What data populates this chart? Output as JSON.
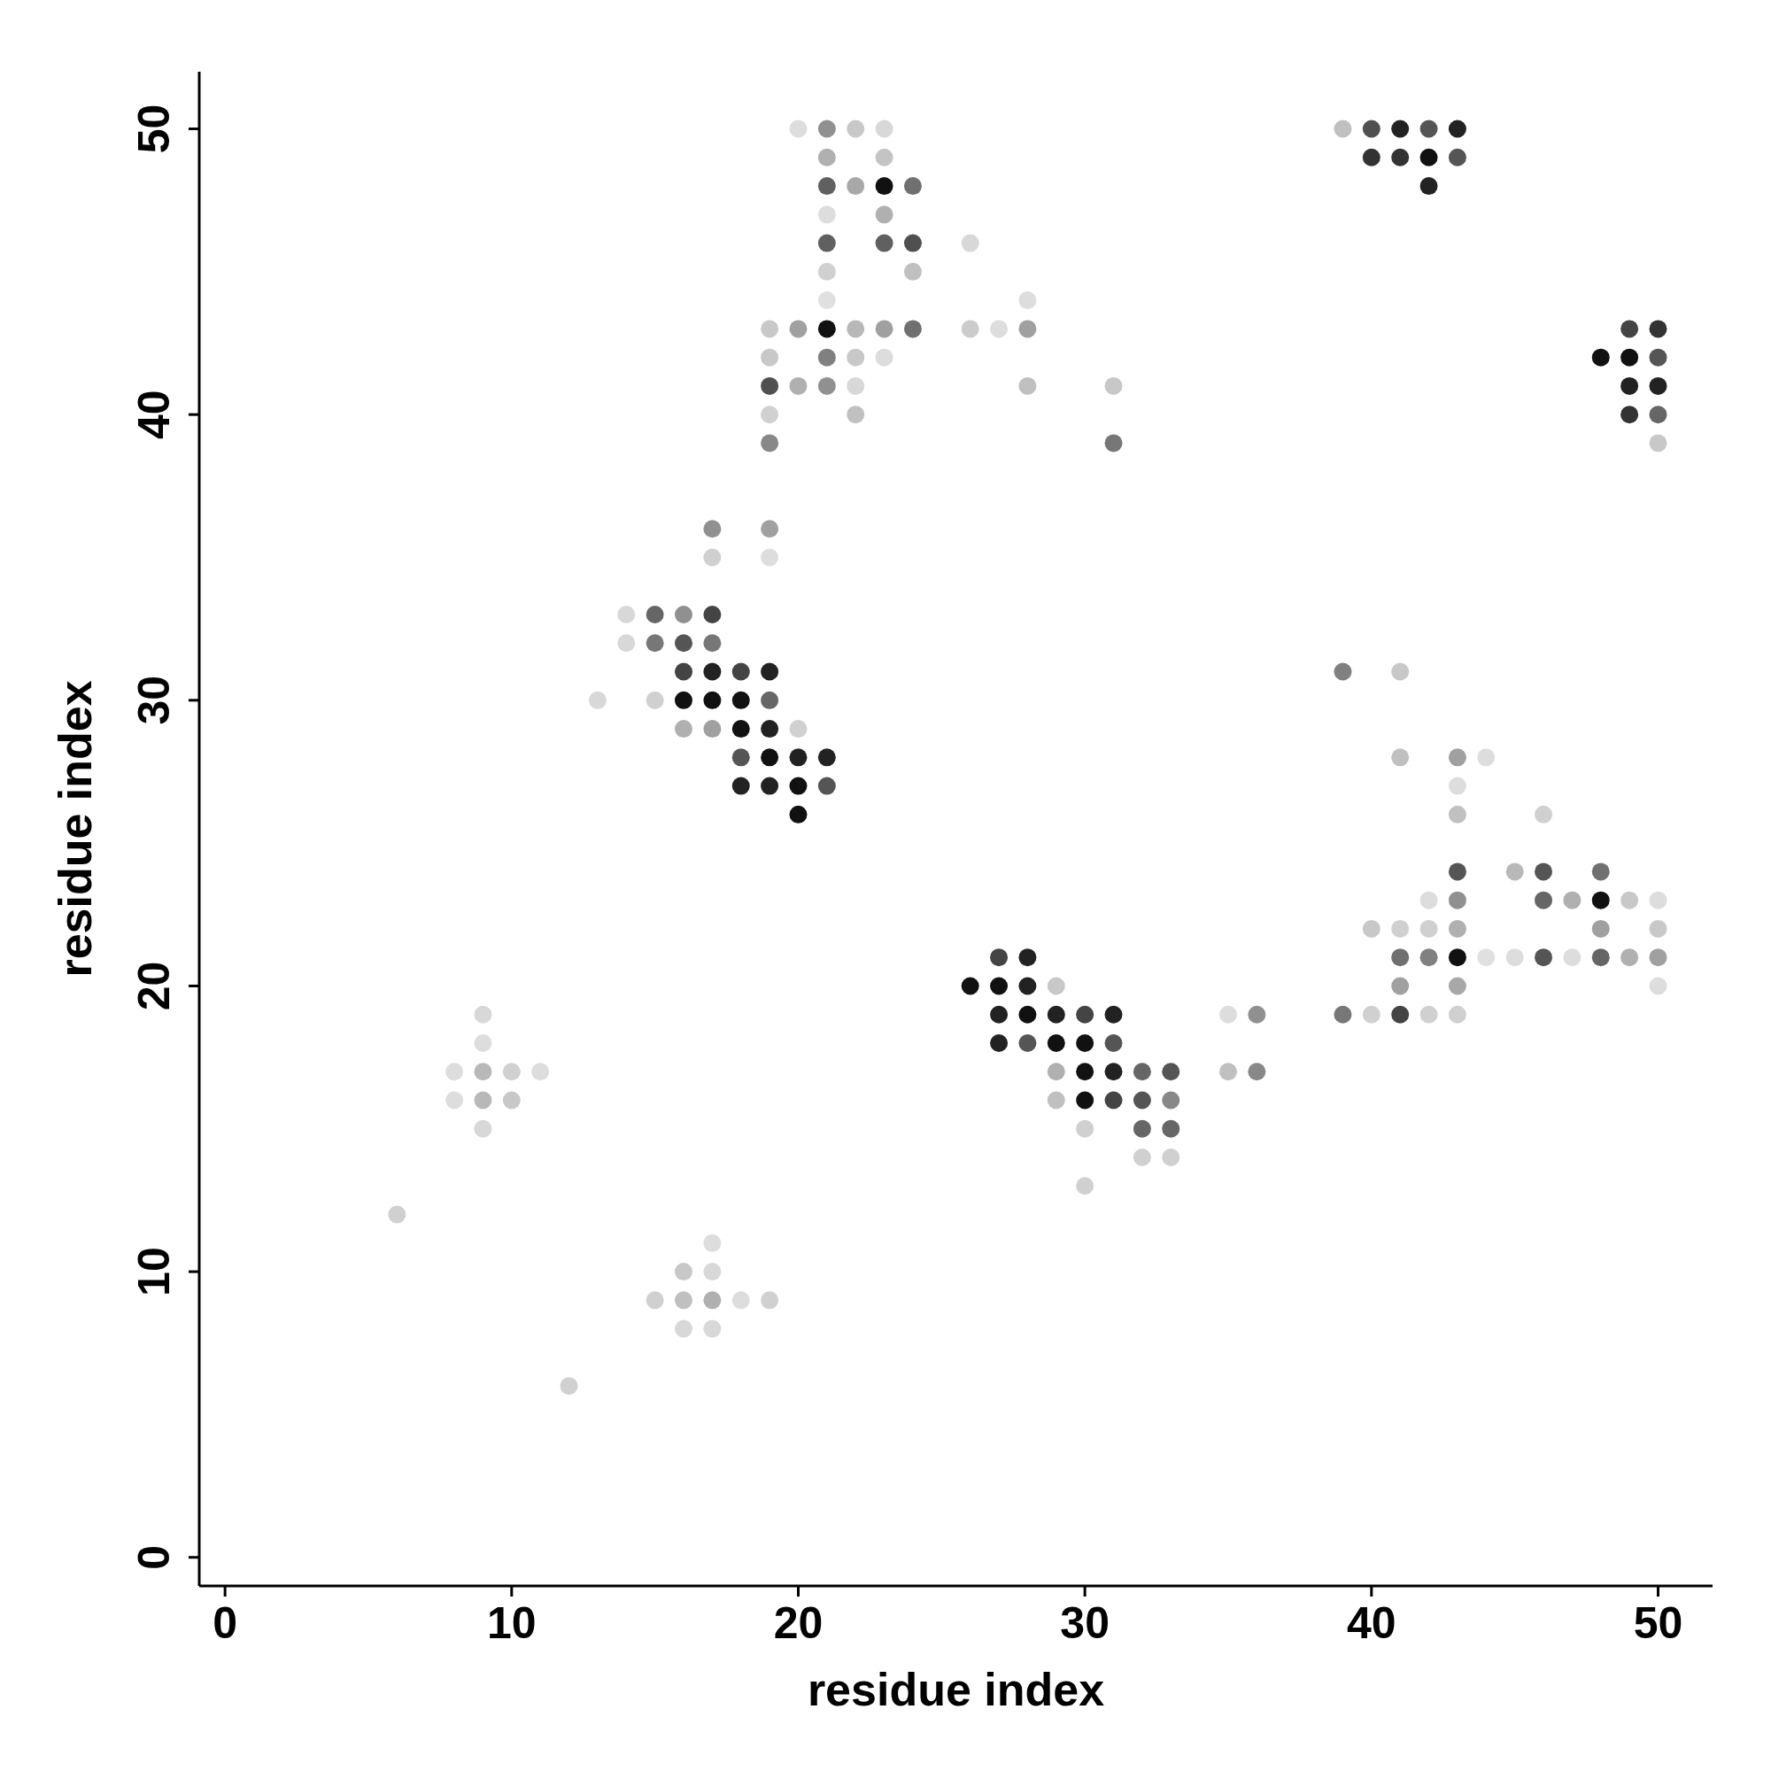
{
  "chart_data": {
    "type": "scatter",
    "xlabel": "residue index",
    "ylabel": "residue index",
    "marker": "circle",
    "grid": false,
    "legend": false,
    "xlim": [
      -0.9,
      51.9
    ],
    "ylim": [
      -1,
      52
    ],
    "xticks": [
      0,
      10,
      20,
      30,
      40,
      50
    ],
    "yticks": [
      0,
      10,
      20,
      30,
      40,
      50
    ],
    "x": [
      20,
      21,
      22,
      23,
      21,
      23,
      21,
      22,
      23,
      24,
      21,
      23,
      21,
      23,
      24,
      26,
      21,
      24,
      21,
      28,
      19,
      20,
      21,
      22,
      23,
      24,
      26,
      27,
      28,
      19,
      21,
      22,
      23,
      19,
      20,
      21,
      22,
      28,
      31,
      19,
      22,
      19,
      31,
      39,
      40,
      41,
      42,
      43,
      40,
      41,
      42,
      43,
      42,
      49,
      50,
      48,
      49,
      50,
      49,
      50,
      49,
      50,
      50,
      17,
      19,
      17,
      19,
      14,
      15,
      16,
      17,
      14,
      15,
      16,
      17,
      16,
      17,
      18,
      19,
      13,
      15,
      16,
      17,
      18,
      19,
      16,
      17,
      18,
      19,
      20,
      18,
      19,
      20,
      21,
      18,
      19,
      20,
      21,
      20,
      39,
      41,
      41,
      43,
      44,
      43,
      43,
      46,
      43,
      45,
      46,
      48,
      42,
      43,
      46,
      47,
      48,
      49,
      50,
      40,
      41,
      42,
      43,
      48,
      50,
      41,
      42,
      43,
      44,
      45,
      46,
      47,
      48,
      49,
      50,
      41,
      43,
      50,
      39,
      40,
      41,
      42,
      43,
      27,
      28,
      26,
      27,
      28,
      29,
      27,
      28,
      29,
      30,
      31,
      35,
      36,
      27,
      28,
      29,
      30,
      31,
      29,
      30,
      31,
      32,
      33,
      35,
      36,
      29,
      30,
      31,
      32,
      33,
      30,
      32,
      33,
      32,
      33,
      30,
      9,
      9,
      8,
      9,
      10,
      11,
      8,
      9,
      10,
      9,
      6,
      17,
      16,
      17,
      15,
      16,
      17,
      18,
      19,
      16,
      17,
      12
    ],
    "values": [
      50,
      50,
      50,
      50,
      49,
      49,
      48,
      48,
      48,
      48,
      47,
      47,
      46,
      46,
      46,
      46,
      45,
      45,
      44,
      44,
      43,
      43,
      43,
      43,
      43,
      43,
      43,
      43,
      43,
      42,
      42,
      42,
      42,
      41,
      41,
      41,
      41,
      41,
      41,
      40,
      40,
      39,
      39,
      50,
      50,
      50,
      50,
      50,
      49,
      49,
      49,
      49,
      48,
      43,
      43,
      42,
      42,
      42,
      41,
      41,
      40,
      40,
      39,
      36,
      36,
      35,
      35,
      33,
      33,
      33,
      33,
      32,
      32,
      32,
      32,
      31,
      31,
      31,
      31,
      30,
      30,
      30,
      30,
      30,
      30,
      29,
      29,
      29,
      29,
      29,
      28,
      28,
      28,
      28,
      27,
      27,
      27,
      27,
      26,
      31,
      31,
      28,
      28,
      28,
      27,
      26,
      26,
      24,
      24,
      24,
      24,
      23,
      23,
      23,
      23,
      23,
      23,
      23,
      22,
      22,
      22,
      22,
      22,
      22,
      21,
      21,
      21,
      21,
      21,
      21,
      21,
      21,
      21,
      21,
      20,
      20,
      20,
      19,
      19,
      19,
      19,
      19,
      21,
      21,
      20,
      20,
      20,
      20,
      19,
      19,
      19,
      19,
      19,
      19,
      19,
      18,
      18,
      18,
      18,
      18,
      17,
      17,
      17,
      17,
      17,
      17,
      17,
      16,
      16,
      16,
      16,
      16,
      15,
      15,
      15,
      14,
      14,
      13,
      19,
      18,
      17,
      17,
      17,
      17,
      16,
      16,
      16,
      15,
      12,
      11,
      10,
      10,
      9,
      9,
      9,
      9,
      9,
      8,
      8,
      6
    ],
    "colors": [
      "#dddddd",
      "#909090",
      "#c8c8c8",
      "#d8d8d8",
      "#b0b0b0",
      "#c4c4c4",
      "#606060",
      "#a8a8a8",
      "#111111",
      "#707070",
      "#dddddd",
      "#b0b0b0",
      "#606060",
      "#606060",
      "#505050",
      "#d8d8d8",
      "#d0d0d0",
      "#c0c0c0",
      "#e0e0e0",
      "#dddddd",
      "#c8c8c8",
      "#a0a0a0",
      "#111111",
      "#b8b8b8",
      "#a0a0a0",
      "#707070",
      "#cccccc",
      "#dddddd",
      "#a0a0a0",
      "#c8c8c8",
      "#808080",
      "#c8c8c8",
      "#dddddd",
      "#505050",
      "#b0b0b0",
      "#909090",
      "#d8d8d8",
      "#c0c0c0",
      "#c8c8c8",
      "#d0d0d0",
      "#c0c0c0",
      "#888888",
      "#777777",
      "#c0c0c0",
      "#505050",
      "#222222",
      "#555555",
      "#222222",
      "#333333",
      "#333333",
      "#111111",
      "#555555",
      "#222222",
      "#444444",
      "#333333",
      "#111111",
      "#111111",
      "#555555",
      "#222222",
      "#222222",
      "#333333",
      "#666666",
      "#c8c8c8",
      "#909090",
      "#a0a0a0",
      "#d0d0d0",
      "#dddddd",
      "#d8d8d8",
      "#666666",
      "#909090",
      "#444444",
      "#d8d8d8",
      "#777777",
      "#555555",
      "#777777",
      "#444444",
      "#222222",
      "#444444",
      "#222222",
      "#d8d8d8",
      "#d0d0d0",
      "#111111",
      "#111111",
      "#111111",
      "#666666",
      "#b0b0b0",
      "#a0a0a0",
      "#111111",
      "#222222",
      "#d0d0d0",
      "#555555",
      "#111111",
      "#222222",
      "#222222",
      "#222222",
      "#222222",
      "#111111",
      "#555555",
      "#111111",
      "#808080",
      "#c8c8c8",
      "#c0c0c0",
      "#a0a0a0",
      "#dddddd",
      "#dddddd",
      "#c0c0c0",
      "#d0d0d0",
      "#555555",
      "#b8b8b8",
      "#555555",
      "#707070",
      "#dddddd",
      "#909090",
      "#666666",
      "#b0b0b0",
      "#111111",
      "#c8c8c8",
      "#dddddd",
      "#c8c8c8",
      "#d0d0d0",
      "#d0d0d0",
      "#b0b0b0",
      "#a0a0a0",
      "#c8c8c8",
      "#707070",
      "#808080",
      "#111111",
      "#e0e0e0",
      "#dddddd",
      "#555555",
      "#dddddd",
      "#666666",
      "#b0b0b0",
      "#a0a0a0",
      "#a0a0a0",
      "#a8a8a8",
      "#dddddd",
      "#777777",
      "#d0d0d0",
      "#444444",
      "#d0d0d0",
      "#d0d0d0",
      "#444444",
      "#222222",
      "#111111",
      "#111111",
      "#222222",
      "#c8c8c8",
      "#222222",
      "#111111",
      "#222222",
      "#444444",
      "#222222",
      "#dddddd",
      "#909090",
      "#222222",
      "#555555",
      "#111111",
      "#111111",
      "#555555",
      "#b0b0b0",
      "#111111",
      "#222222",
      "#666666",
      "#555555",
      "#c0c0c0",
      "#888888",
      "#c0c0c0",
      "#111111",
      "#444444",
      "#555555",
      "#888888",
      "#d0d0d0",
      "#666666",
      "#666666",
      "#d0d0d0",
      "#d0d0d0",
      "#d0d0d0",
      "#d8d8d8",
      "#dddddd",
      "#dddddd",
      "#b8b8b8",
      "#d0d0d0",
      "#dddddd",
      "#dddddd",
      "#b8b8b8",
      "#c8c8c8",
      "#d8d8d8",
      "#d0d0d0",
      "#dddddd",
      "#c8c8c8",
      "#d8d8d8",
      "#d0d0d0",
      "#c0c0c0",
      "#b0b0b0",
      "#dddddd",
      "#d0d0d0",
      "#d8d8d8",
      "#d8d8d8",
      "#d0d0d0"
    ]
  }
}
